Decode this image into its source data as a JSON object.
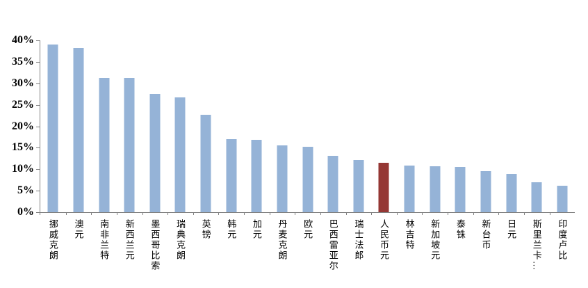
{
  "chart_data": {
    "type": "bar",
    "title": "",
    "xlabel": "",
    "ylabel": "",
    "categories": [
      "挪威克朗",
      "澳元",
      "南非兰特",
      "新西兰元",
      "墨西哥比索",
      "瑞典克朗",
      "英镑",
      "韩元",
      "加元",
      "丹麦克朗",
      "欧元",
      "巴西雷亚尔",
      "瑞士法郎",
      "人民币元",
      "林吉特",
      "新加坡元",
      "泰铢",
      "新台币",
      "日元",
      "斯里兰卡…",
      "印度卢比"
    ],
    "values": [
      39.0,
      38.3,
      31.2,
      31.2,
      27.6,
      26.8,
      22.7,
      17.0,
      16.9,
      15.6,
      15.2,
      13.2,
      12.2,
      11.5,
      10.9,
      10.7,
      10.6,
      9.6,
      8.9,
      6.9,
      6.2
    ],
    "value_unit": "%",
    "ylim": [
      0,
      40
    ],
    "yticks": [
      0,
      5,
      10,
      15,
      20,
      25,
      30,
      35,
      40
    ],
    "ytick_labels": [
      "0%",
      "5%",
      "10%",
      "15%",
      "20%",
      "25%",
      "30%",
      "35%",
      "40%"
    ],
    "grid": false,
    "legend": null,
    "bar_color": "#95B3D7",
    "highlight_category": "人民币元",
    "highlight_color": "#953734",
    "axis_color": "#808080"
  }
}
